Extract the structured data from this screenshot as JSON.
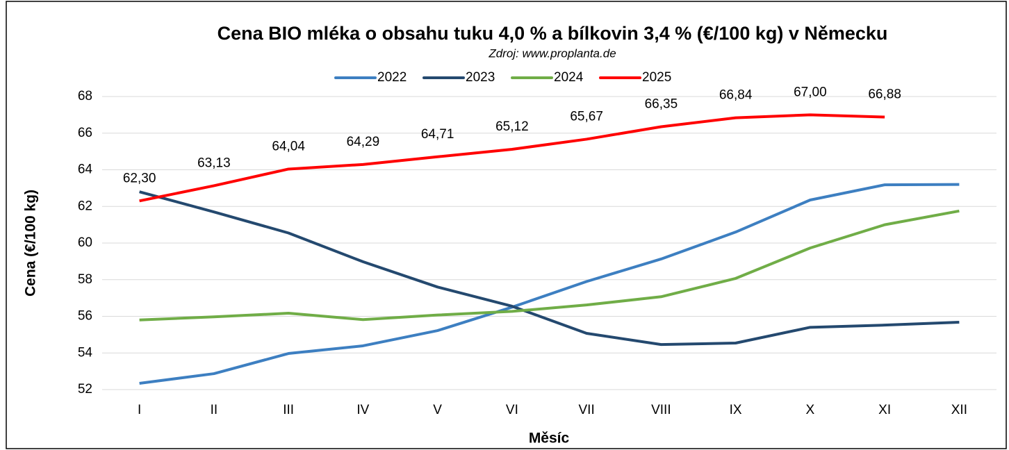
{
  "chart_data": {
    "type": "line",
    "title": "Cena BIO mléka o obsahu tuku 4,0 % a bílkovin 3,4 % (€/100 kg) v Německu",
    "subtitle": "Zdroj: www.proplanta.de",
    "x_label": "Měsíc",
    "y_label": "Cena (€/100 kg)",
    "categories": [
      "I",
      "II",
      "III",
      "IV",
      "V",
      "VI",
      "VII",
      "VIII",
      "IX",
      "X",
      "XI",
      "XII"
    ],
    "series": [
      {
        "name": "2022",
        "color": "#3d7fc1",
        "values": [
          52.34,
          52.87,
          53.97,
          54.39,
          55.22,
          56.5,
          57.9,
          59.13,
          60.6,
          62.35,
          63.18,
          63.2
        ]
      },
      {
        "name": "2023",
        "color": "#24496f",
        "values": [
          62.8,
          61.7,
          60.55,
          58.98,
          57.6,
          56.55,
          55.07,
          54.46,
          54.54,
          55.4,
          55.52,
          55.68
        ]
      },
      {
        "name": "2024",
        "color": "#70ad47",
        "values": [
          55.8,
          55.97,
          56.17,
          55.82,
          56.07,
          56.27,
          56.62,
          57.07,
          58.07,
          59.73,
          61.0,
          61.75
        ]
      },
      {
        "name": "2025",
        "color": "#ff0000",
        "values": [
          62.3,
          63.13,
          64.04,
          64.29,
          64.71,
          65.12,
          65.67,
          66.35,
          66.84,
          67.0,
          66.88,
          null
        ],
        "value_labels": [
          "62,30",
          "63,13",
          "64,04",
          "64,29",
          "64,71",
          "65,12",
          "65,67",
          "66,35",
          "66,84",
          "67,00",
          "66,88",
          null
        ]
      }
    ],
    "ylim": [
      52,
      68
    ],
    "yticks": [
      52,
      54,
      56,
      58,
      60,
      62,
      64,
      66,
      68
    ],
    "grid": true,
    "legend": "top"
  }
}
